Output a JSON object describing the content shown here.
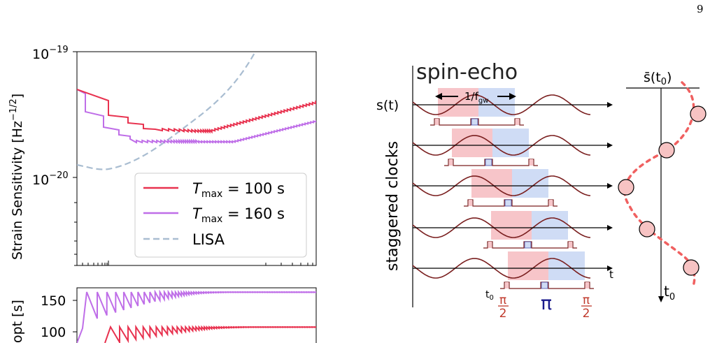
{
  "page_number": "9",
  "colors": {
    "t100": "#e8324f",
    "t160": "#bf6ee8",
    "lisa": "#a9bdd1",
    "wave": "#7a1f1f",
    "pink_box": "#f7c5c9",
    "blue_box": "#cfdcf5",
    "dot_fill": "#f7c3c3",
    "dot_dash": "#f06060",
    "pulse_red": "#c0392b",
    "pi_blue": "#1a1a8c"
  },
  "chart_data": [
    {
      "type": "line",
      "panel": "top",
      "ylabel": "Strain Sensitivity [Hz^-1/2]",
      "yscale": "log",
      "ylim": [
        3e-21,
        1e-19
      ],
      "yticks": [
        "10^-19",
        "10^-20"
      ],
      "grid": false,
      "legend_position": "lower-right",
      "series": [
        {
          "name": "T_max = 100 s",
          "key": "t100"
        },
        {
          "name": "T_max = 160 s",
          "key": "t160"
        },
        {
          "name": "LISA",
          "key": "lisa",
          "style": "dashed"
        }
      ]
    },
    {
      "type": "line",
      "panel": "bottom",
      "ylabel": "T_opt [s]",
      "yticks": [
        150,
        100
      ],
      "series": [
        {
          "name": "T_max = 100 s",
          "plateau": 100
        },
        {
          "name": "T_max = 160 s",
          "plateau": 160
        }
      ]
    }
  ],
  "legend": {
    "t100": {
      "sym": "T",
      "sub": "max",
      "rest": " = 100 s"
    },
    "t160": {
      "sym": "T",
      "sub": "max",
      "rest": " = 160 s"
    },
    "lisa": "LISA"
  },
  "top_axis": {
    "ylabel": "Strain Sensitivity [Hz",
    "ylabel_exp": "−1/2",
    "ylabel_close": "]",
    "tick_top_base": "10",
    "tick_top_exp": "−19",
    "tick_mid_base": "10",
    "tick_mid_exp": "−20"
  },
  "bottom_axis": {
    "ylabel": "opt [s]",
    "tick_150": "150",
    "tick_100": "100"
  },
  "diagram": {
    "title": "spin-echo",
    "period_label": "1/f",
    "period_sub": "gw",
    "signal_label": "s(t)",
    "clocks_label": "staggered clocks",
    "t_axis": "t",
    "t0_label": "t",
    "t0_sub": "0",
    "pi_label": "π",
    "half_pi_num": "π",
    "half_pi_den": "2",
    "avg_label": "s̄(t",
    "avg_sub": "0",
    "avg_close": ")",
    "t0_axis": "t",
    "t0_axis_sub": "0"
  }
}
